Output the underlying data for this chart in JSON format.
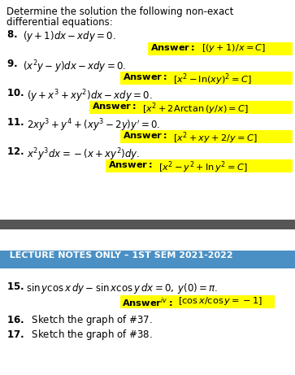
{
  "bg_color": "#ffffff",
  "dark_bar_color": "#555555",
  "blue_bar_color": "#4a90c4",
  "yellow_highlight": "#ffff00",
  "title_line1": "Determine the solution the following non-exact",
  "title_line2": "differential equations:",
  "lecture_text": "  LECTURE NOTES ONLY – 1ST SEM 2021-2022",
  "fig_width": 3.63,
  "fig_height": 4.61,
  "dpi": 100
}
